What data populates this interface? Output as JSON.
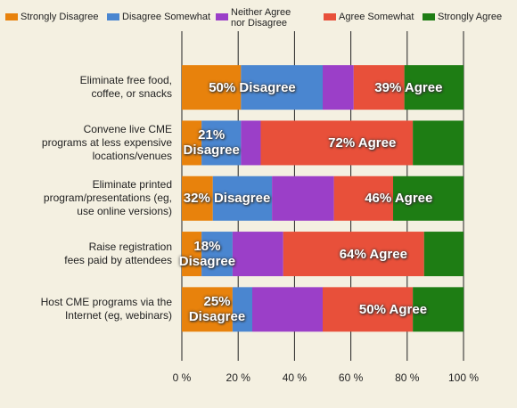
{
  "chart_data": {
    "type": "stacked_bar_horizontal",
    "categories": [
      "Eliminate free food,\ncoffee, or snacks",
      "Convene live CME\nprograms at less expensive\nlocations/venues",
      "Eliminate printed\nprogram/presentations (eg,\nuse online versions)",
      "Raise registration\nfees paid by attendees",
      "Host CME programs via the\nInternet (eg, webinars)"
    ],
    "series": [
      {
        "name": "Strongly Disagree",
        "color": "#e8820c",
        "values": [
          21,
          7,
          11,
          7,
          18
        ]
      },
      {
        "name": "Disagree Somewhat",
        "color": "#4a86d0",
        "values": [
          29,
          14,
          21,
          11,
          7
        ]
      },
      {
        "name": "Neither Agree\nnor Disagree",
        "color": "#9b3fc8",
        "values": [
          11,
          7,
          22,
          18,
          25
        ]
      },
      {
        "name": "Agree Somewhat",
        "color": "#e8503a",
        "values": [
          18,
          54,
          21,
          50,
          32
        ]
      },
      {
        "name": "Strongly Agree",
        "color": "#1e7d14",
        "values": [
          21,
          18,
          25,
          14,
          18
        ]
      }
    ],
    "disagree_labels": [
      "50% Disagree",
      "21% Disagree",
      "32% Disagree",
      "18% Disagree",
      "25% Disagree"
    ],
    "agree_labels": [
      "39% Agree",
      "72% Agree",
      "46% Agree",
      "64% Agree",
      "50% Agree"
    ],
    "xlim": [
      0,
      100
    ],
    "xticks": [
      {
        "value": 0,
        "label": "0 %"
      },
      {
        "value": 20,
        "label": "20 %"
      },
      {
        "value": 40,
        "label": "40 %"
      },
      {
        "value": 60,
        "label": "60 %"
      },
      {
        "value": 80,
        "label": "80 %"
      },
      {
        "value": 100,
        "label": "100 %"
      }
    ],
    "grid": true
  }
}
